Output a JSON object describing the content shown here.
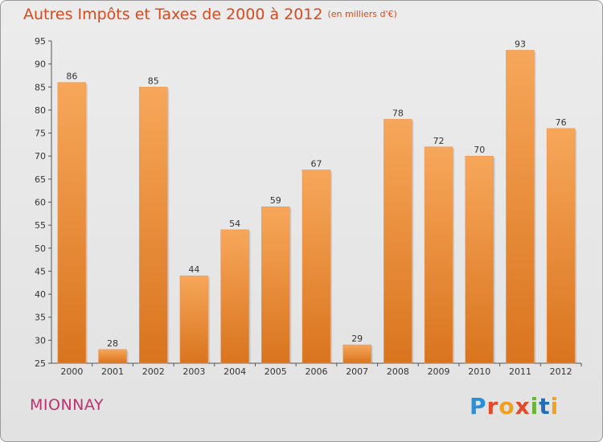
{
  "header": {
    "title": "Autres Impôts et Taxes de 2000 à 2012",
    "unit": "(en milliers d'€)"
  },
  "footer": {
    "place": "MIONNAY",
    "logo": "Proxiti"
  },
  "colors": {
    "bar_top": "#f7a75a",
    "bar_bottom": "#d9741e",
    "title": "#d94a1e",
    "place": "#c0306e"
  },
  "chart_data": {
    "type": "bar",
    "title": "Autres Impôts et Taxes de 2000 à 2012",
    "xlabel": "",
    "ylabel": "",
    "categories": [
      "2000",
      "2001",
      "2002",
      "2003",
      "2004",
      "2005",
      "2006",
      "2007",
      "2008",
      "2009",
      "2010",
      "2011",
      "2012"
    ],
    "values": [
      86,
      28,
      85,
      44,
      54,
      59,
      67,
      29,
      78,
      72,
      70,
      93,
      76
    ],
    "ylim": [
      25,
      95
    ],
    "yticks": [
      25,
      30,
      35,
      40,
      45,
      50,
      55,
      60,
      65,
      70,
      75,
      80,
      85,
      90,
      95
    ],
    "grid": false,
    "data_labels": true
  }
}
